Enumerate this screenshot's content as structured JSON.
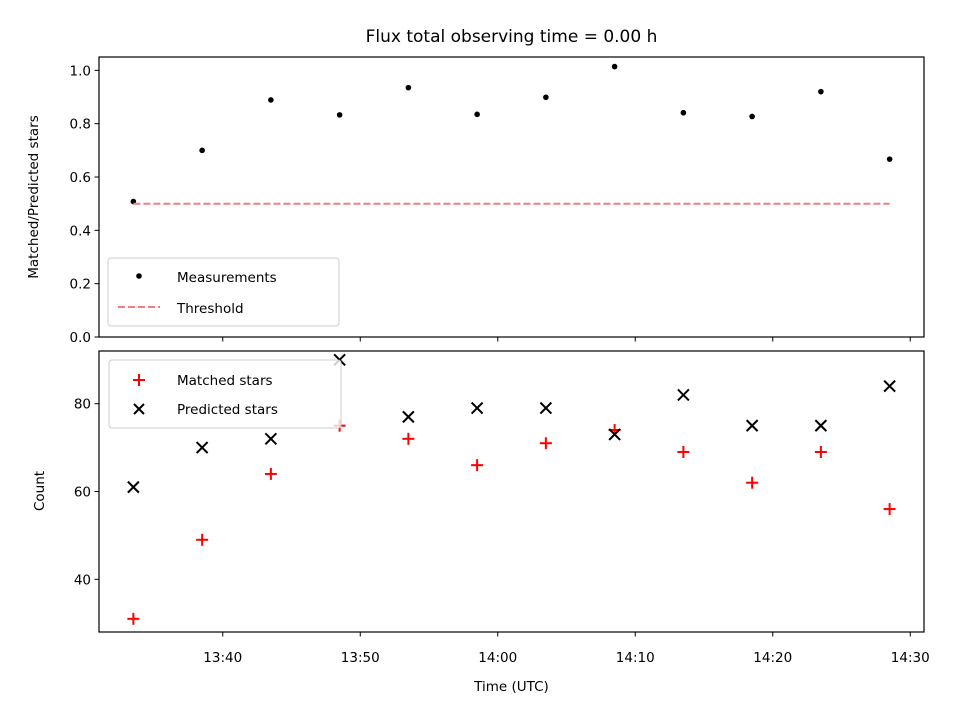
{
  "chart_data": [
    {
      "type": "scatter",
      "title": "Flux total observing time = 0.00 h",
      "xlabel": "",
      "ylabel": "Matched/Predicted stars",
      "ylim": [
        0.0,
        1.05
      ],
      "yticks": [
        "0.0",
        "0.2",
        "0.4",
        "0.6",
        "0.8",
        "1.0"
      ],
      "xlim": [
        "13:31",
        "14:31"
      ],
      "x": [
        "13:33:30",
        "13:38:30",
        "13:43:30",
        "13:48:30",
        "13:53:30",
        "13:58:30",
        "14:03:30",
        "14:08:30",
        "14:13:30",
        "14:18:30",
        "14:23:30",
        "14:28:30"
      ],
      "series": [
        {
          "name": "Measurements",
          "marker": "dot",
          "color": "#000000",
          "values": [
            0.508,
            0.7,
            0.889,
            0.833,
            0.935,
            0.835,
            0.899,
            1.014,
            0.841,
            0.827,
            0.92,
            0.667
          ]
        },
        {
          "name": "Threshold",
          "marker": "dashed-line",
          "color": "#f08080",
          "values": [
            0.5,
            0.5,
            0.5,
            0.5,
            0.5,
            0.5,
            0.5,
            0.5,
            0.5,
            0.5,
            0.5,
            0.5
          ]
        }
      ],
      "legend": "lower-left",
      "grid": false
    },
    {
      "type": "scatter",
      "title": "",
      "xlabel": "Time (UTC)",
      "ylabel": "Count",
      "ylim": [
        28,
        92
      ],
      "yticks": [
        "40",
        "60",
        "80"
      ],
      "xlim": [
        "13:31",
        "14:31"
      ],
      "xticks": [
        "13:40",
        "13:50",
        "14:00",
        "14:10",
        "14:20",
        "14:30"
      ],
      "x": [
        "13:33:30",
        "13:38:30",
        "13:43:30",
        "13:48:30",
        "13:53:30",
        "13:58:30",
        "14:03:30",
        "14:08:30",
        "14:13:30",
        "14:18:30",
        "14:23:30",
        "14:28:30"
      ],
      "series": [
        {
          "name": "Matched stars",
          "marker": "plus",
          "color": "#ff0000",
          "values": [
            31,
            49,
            64,
            75,
            72,
            66,
            71,
            74,
            69,
            62,
            69,
            56
          ]
        },
        {
          "name": "Predicted stars",
          "marker": "x",
          "color": "#000000",
          "values": [
            61,
            70,
            72,
            90,
            77,
            79,
            79,
            73,
            82,
            75,
            75,
            84
          ]
        }
      ],
      "legend": "upper-left",
      "grid": false
    }
  ]
}
